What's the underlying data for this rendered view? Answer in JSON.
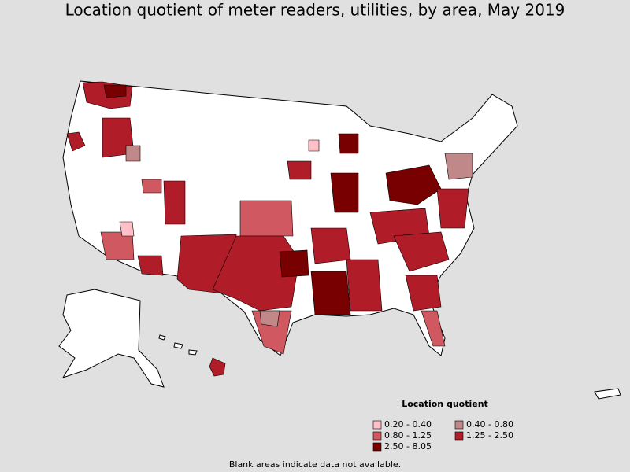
{
  "title": "Location quotient of meter readers, utilities, by area, May 2019",
  "legend": {
    "title": "Location quotient",
    "items": [
      {
        "label": "0.20 - 0.40",
        "color": "#ffc0c8"
      },
      {
        "label": "0.40 - 0.80",
        "color": "#c08888"
      },
      {
        "label": "0.80 - 1.25",
        "color": "#d05860"
      },
      {
        "label": "1.25 - 2.50",
        "color": "#b01c28"
      },
      {
        "label": "2.50 - 8.05",
        "color": "#780000"
      }
    ]
  },
  "note": "Blank areas indicate data not available."
}
